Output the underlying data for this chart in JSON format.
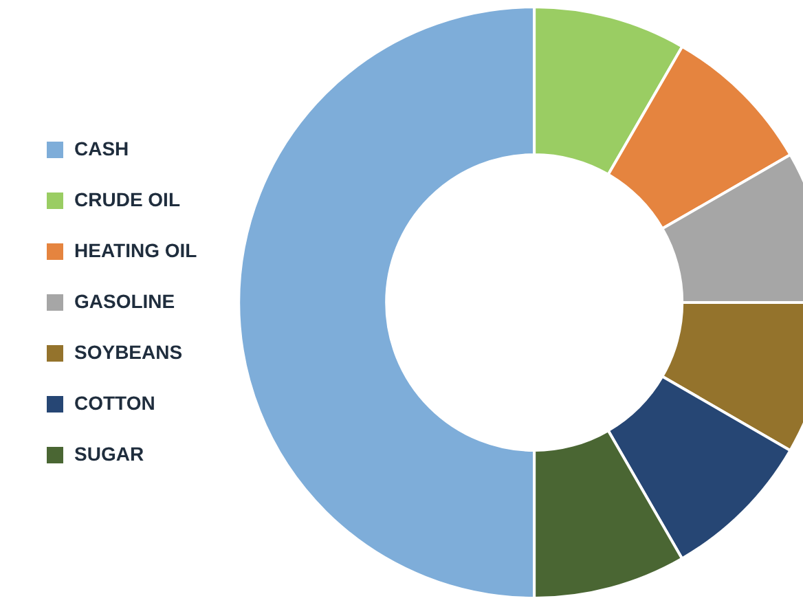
{
  "chart_data": {
    "type": "donut",
    "categories": [
      "CASH",
      "CRUDE OIL",
      "HEATING OIL",
      "GASOLINE",
      "SOYBEANS",
      "COTTON",
      "SUGAR"
    ],
    "values": [
      50,
      8.34,
      8.33,
      8.33,
      8.34,
      8.33,
      8.33
    ],
    "colors": [
      "#7eadd9",
      "#9acd63",
      "#e5843f",
      "#a6a6a6",
      "#94732c",
      "#264674",
      "#4a6633"
    ],
    "legend": "left"
  }
}
